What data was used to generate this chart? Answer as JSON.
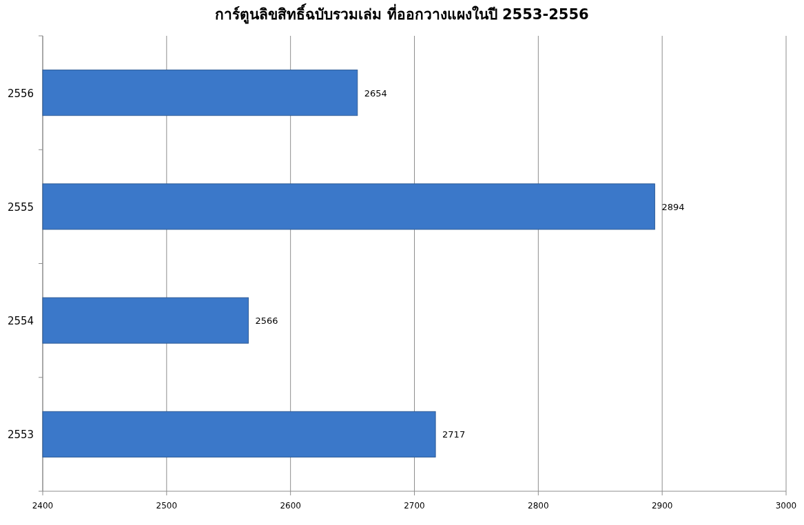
{
  "chart_data": {
    "type": "bar",
    "orientation": "horizontal",
    "title": "การ์ตูนลิขสิทธิ์ฉบับรวมเล่ม ที่ออกวางแผงในปี 2553-2556",
    "categories": [
      "2556",
      "2555",
      "2554",
      "2553"
    ],
    "values": [
      2654,
      2894,
      2566,
      2717
    ],
    "color": "#3b78c9",
    "xlim": [
      2400,
      3000
    ],
    "xticks": [
      2400,
      2500,
      2600,
      2700,
      2800,
      2900,
      3000
    ],
    "grid": "x",
    "data_labels": true
  }
}
